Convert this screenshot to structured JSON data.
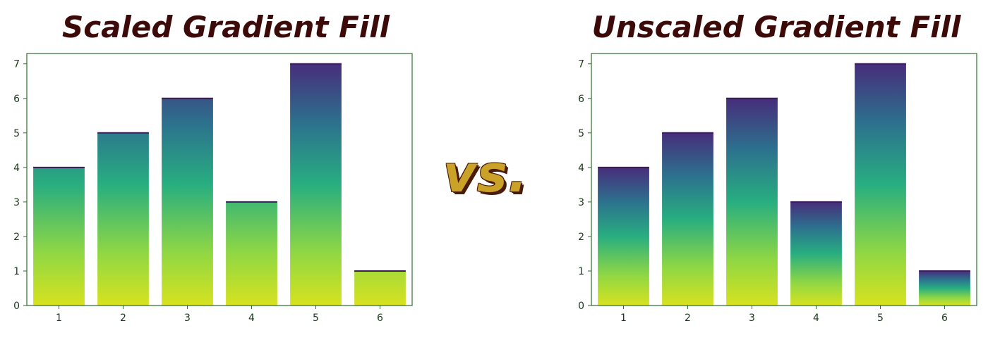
{
  "vs_label": "vs.",
  "colors": {
    "gradient_top": "#472d7b",
    "gradient_mid_upper": "#2c728e",
    "gradient_mid": "#28ae80",
    "gradient_mid_lower": "#8fd744",
    "gradient_bottom": "#d7e21f",
    "axis": "#2e6b2e"
  },
  "chart_data": [
    {
      "type": "bar",
      "title": "Scaled Gradient Fill",
      "categories": [
        "1",
        "2",
        "3",
        "4",
        "5",
        "6"
      ],
      "values": [
        4,
        5,
        6,
        3,
        7,
        1
      ],
      "ylim": [
        0,
        7.3
      ],
      "yticks": [
        0,
        1,
        2,
        3,
        4,
        5,
        6,
        7
      ],
      "xlabel": "",
      "ylabel": "",
      "gradient": "scaled",
      "grid": false
    },
    {
      "type": "bar",
      "title": "Unscaled Gradient Fill",
      "categories": [
        "1",
        "2",
        "3",
        "4",
        "5",
        "6"
      ],
      "values": [
        4,
        5,
        6,
        3,
        7,
        1
      ],
      "ylim": [
        0,
        7.3
      ],
      "yticks": [
        0,
        1,
        2,
        3,
        4,
        5,
        6,
        7
      ],
      "xlabel": "",
      "ylabel": "",
      "gradient": "unscaled",
      "grid": false
    }
  ]
}
